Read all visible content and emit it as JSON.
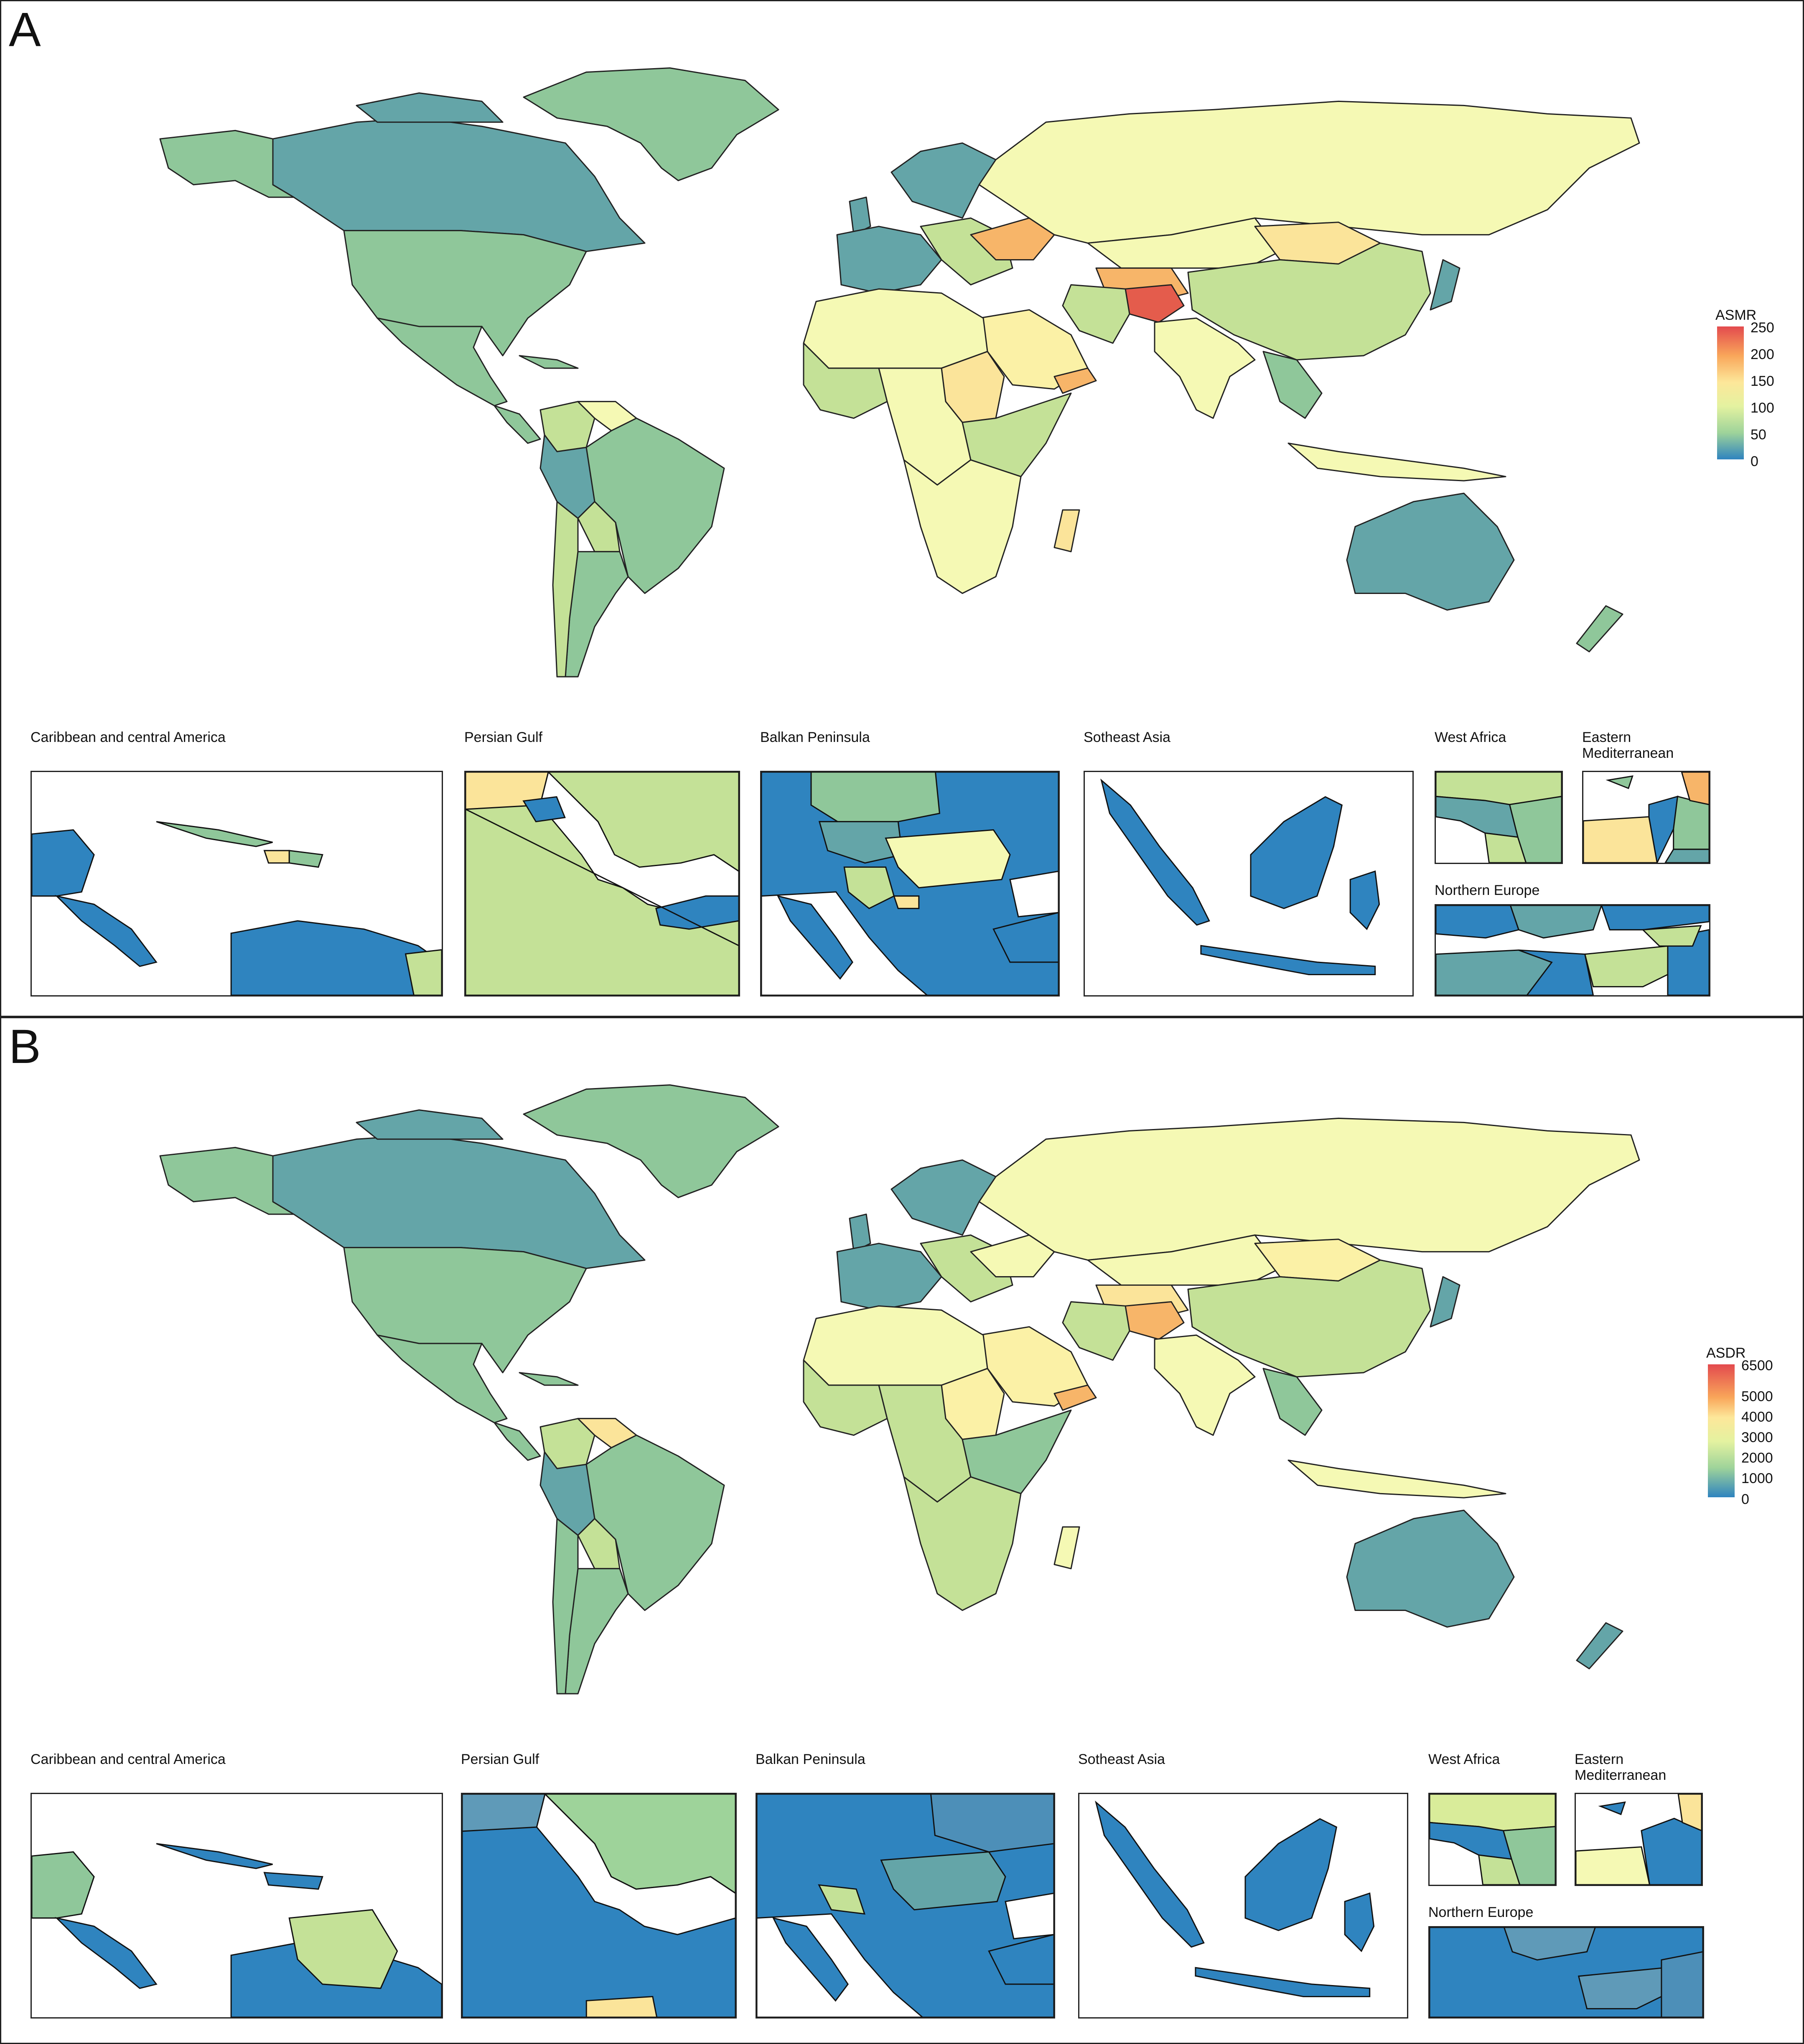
{
  "panels": [
    {
      "letter": "A",
      "legend": {
        "title": "ASMR",
        "ticks": [
          "250",
          "200",
          "150",
          "100",
          "50",
          "0"
        ],
        "colors": [
          "#e34a4e",
          "#f9a65a",
          "#fde79a",
          "#e4f2a0",
          "#9ed39a",
          "#2f84bf"
        ]
      },
      "inset_titles": [
        "Caribbean and central America",
        "Persian Gulf",
        "Balkan Peninsula",
        "Sotheast Asia",
        "West Africa",
        "Eastern Mediterranean",
        "Northern Europe"
      ]
    },
    {
      "letter": "B",
      "legend": {
        "title": "ASDR",
        "ticks": [
          "6500",
          "5000",
          "4000",
          "3000",
          "2000",
          "1000",
          "0"
        ],
        "colors": [
          "#e34a4e",
          "#f9a65a",
          "#fde79a",
          "#e4f2a0",
          "#9ed39a",
          "#2f84bf"
        ]
      },
      "inset_titles": [
        "Caribbean and central America",
        "Persian Gulf",
        "Balkan Peninsula",
        "Sotheast Asia",
        "West Africa",
        "Eastern Mediterranean",
        "Northern Europe"
      ]
    }
  ],
  "fill_colors": {
    "blue": "#2f84bf",
    "teal": "#64a5a8",
    "green": "#8fc79a",
    "lightgreen": "#c4e197",
    "paleyellow": "#f5f9b4",
    "yellow": "#fbf1a6",
    "orange": "#f7b569",
    "red": "#e45c4c"
  }
}
